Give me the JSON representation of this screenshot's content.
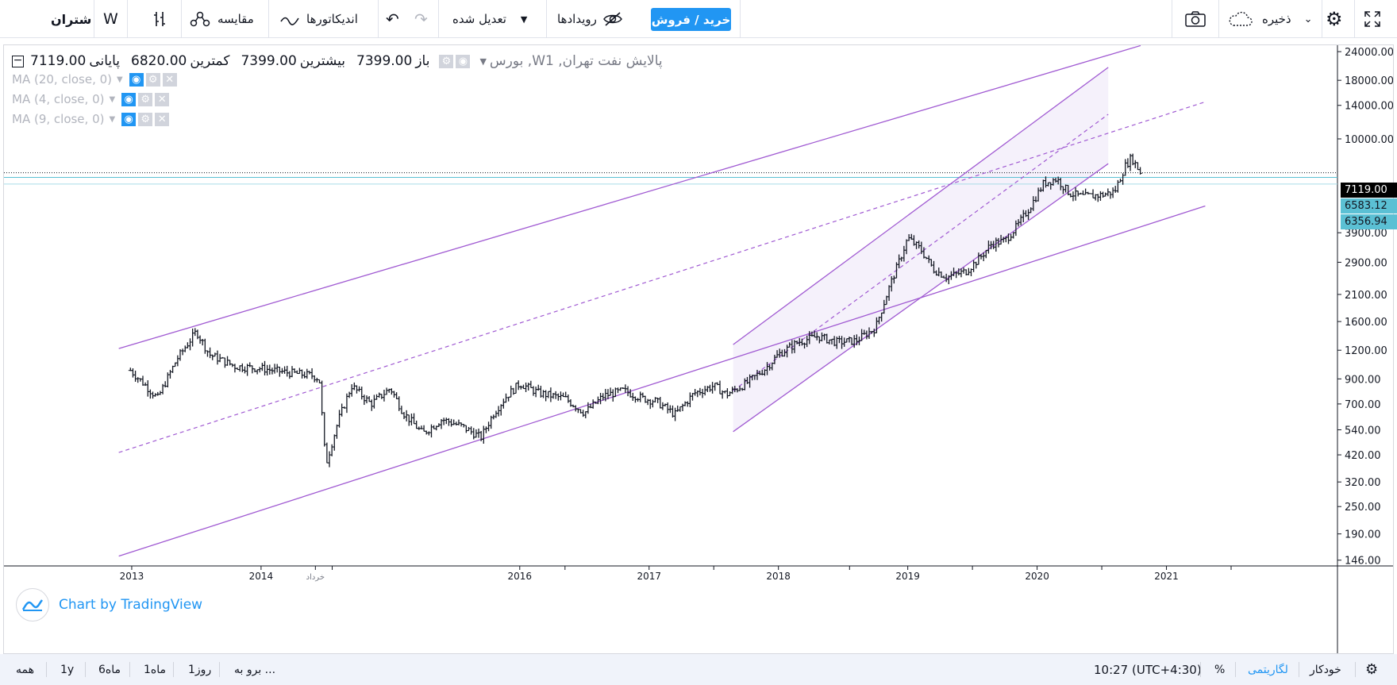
{
  "toolbar": {
    "symbol": "شتران",
    "w_label": "W",
    "compare_label": "مقایسه",
    "indicators_label": "اندیکاتورها",
    "adjust_label": "تعدیل شده",
    "events_label": "رویدادها",
    "buy_sell_label": "خرید / فروش",
    "save_label": "ذخیره"
  },
  "legend": {
    "title": "بورس ,Wپالایش نفت تهران, 1",
    "open_label": "باز",
    "open_value": "7399.00",
    "high_label": "بیشترین",
    "high_value": "7399.00",
    "low_label": "کمترین",
    "low_value": "6820.00",
    "close_label": "پایانی",
    "close_value": "7119.00",
    "ma": [
      "MA (20, close, 0)",
      "MA (4, close, 0)",
      "MA (9, close, 0)"
    ]
  },
  "price_labels": {
    "last": "7119.00",
    "ma_a": "6583.12",
    "ma_b": "6356.94"
  },
  "chart_data": {
    "type": "candlestick",
    "y_scale": "log",
    "ylim": [
      140,
      26000
    ],
    "y_ticks": [
      "24000.00",
      "18000.00",
      "14000.00",
      "10000.00",
      "3900.00",
      "2900.00",
      "2100.00",
      "1600.00",
      "1200.00",
      "900.00",
      "700.00",
      "540.00",
      "420.00",
      "320.00",
      "250.00",
      "190.00",
      "146.00"
    ],
    "x_ticks": [
      {
        "label": "2013",
        "t": 2013.0
      },
      {
        "label": "2014",
        "t": 2014.0
      },
      {
        "label": "خرداد",
        "t": 2014.42
      },
      {
        "label": "2016",
        "t": 2016.0
      },
      {
        "label": "2017",
        "t": 2017.0
      },
      {
        "label": "2018",
        "t": 2018.0
      },
      {
        "label": "2019",
        "t": 2019.0
      },
      {
        "label": "2020",
        "t": 2020.0
      },
      {
        "label": "2021",
        "t": 2021.0
      }
    ],
    "price_path": [
      [
        2012.99,
        980
      ],
      [
        2013.1,
        850
      ],
      [
        2013.2,
        740
      ],
      [
        2013.35,
        1100
      ],
      [
        2013.5,
        1450
      ],
      [
        2013.6,
        1150
      ],
      [
        2013.8,
        1020
      ],
      [
        2014.0,
        1000
      ],
      [
        2014.2,
        960
      ],
      [
        2014.4,
        930
      ],
      [
        2014.45,
        900
      ],
      [
        2014.5,
        380
      ],
      [
        2014.6,
        600
      ],
      [
        2014.7,
        840
      ],
      [
        2014.85,
        700
      ],
      [
        2015.0,
        820
      ],
      [
        2015.1,
        640
      ],
      [
        2015.25,
        520
      ],
      [
        2015.4,
        600
      ],
      [
        2015.55,
        560
      ],
      [
        2015.7,
        500
      ],
      [
        2015.8,
        640
      ],
      [
        2015.9,
        760
      ],
      [
        2016.0,
        860
      ],
      [
        2016.15,
        780
      ],
      [
        2016.35,
        740
      ],
      [
        2016.5,
        640
      ],
      [
        2016.65,
        760
      ],
      [
        2016.8,
        800
      ],
      [
        2016.95,
        740
      ],
      [
        2017.05,
        720
      ],
      [
        2017.2,
        630
      ],
      [
        2017.35,
        780
      ],
      [
        2017.5,
        840
      ],
      [
        2017.6,
        770
      ],
      [
        2017.75,
        860
      ],
      [
        2017.9,
        1000
      ],
      [
        2018.0,
        1150
      ],
      [
        2018.15,
        1300
      ],
      [
        2018.3,
        1380
      ],
      [
        2018.45,
        1300
      ],
      [
        2018.6,
        1320
      ],
      [
        2018.75,
        1500
      ],
      [
        2018.85,
        2200
      ],
      [
        2018.95,
        3100
      ],
      [
        2019.0,
        3700
      ],
      [
        2019.1,
        3300
      ],
      [
        2019.2,
        2700
      ],
      [
        2019.3,
        2500
      ],
      [
        2019.45,
        2650
      ],
      [
        2019.55,
        3000
      ],
      [
        2019.65,
        3500
      ],
      [
        2019.75,
        3600
      ],
      [
        2019.85,
        4200
      ],
      [
        2019.95,
        5100
      ],
      [
        2020.05,
        6400
      ],
      [
        2020.15,
        6700
      ],
      [
        2020.25,
        5800
      ],
      [
        2020.35,
        5600
      ],
      [
        2020.5,
        5700
      ],
      [
        2020.6,
        5900
      ],
      [
        2020.68,
        7600
      ],
      [
        2020.73,
        8300
      ],
      [
        2020.8,
        7119
      ]
    ],
    "drawings": {
      "outer_channel_upper": [
        [
          2012.9,
          1220
        ],
        [
          2020.8,
          25500
        ]
      ],
      "outer_channel_lower": [
        [
          2012.9,
          152
        ],
        [
          2021.3,
          5100
        ]
      ],
      "inner_channel_upper": [
        [
          2017.65,
          1270
        ],
        [
          2020.55,
          20500
        ]
      ],
      "inner_channel_lower": [
        [
          2017.65,
          530
        ],
        [
          2020.55,
          7800
        ]
      ],
      "dashed_line_1": [
        [
          2012.9,
          430
        ],
        [
          2021.3,
          14500
        ]
      ],
      "dashed_line_2": [
        [
          2017.65,
          800
        ],
        [
          2020.55,
          12800
        ]
      ],
      "horizontal_lines": [
        7119,
        6583.12,
        6356.94
      ]
    }
  },
  "bottombar": {
    "all": "همه",
    "y1": "1y",
    "m6": "6ماه",
    "m1": "1ماه",
    "d1": "1روز",
    "goto": "برو به ...",
    "time": "10:27 (UTC+4:30)",
    "percent": "%",
    "log": "لگاریتمی",
    "auto": "خودکار"
  },
  "branding": {
    "chart_by": "Chart by TradingView"
  },
  "colors": {
    "accent": "#2196f3",
    "drawing": "#a05ad2",
    "ma_label": "#5bc0d4"
  }
}
